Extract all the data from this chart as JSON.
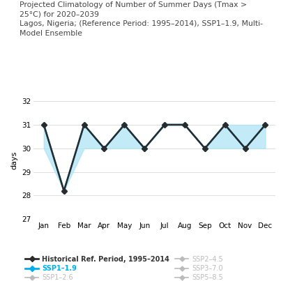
{
  "title_line1": "Projected Climatology of Number of Summer Days (Tmax >",
  "title_line2": "25°C) for 2020–2039",
  "title_line3": "Lagos, Nigeria; (Reference Period: 1995–2014), SSP1–1.9, Multi-",
  "title_line4": "Model Ensemble",
  "months": [
    "Jan",
    "Feb",
    "Mar",
    "Apr",
    "May",
    "Jun",
    "Jul",
    "Aug",
    "Sep",
    "Oct",
    "Nov",
    "Dec"
  ],
  "historical": [
    31,
    28.2,
    31,
    30,
    31,
    30,
    31,
    31,
    30,
    31,
    30,
    31
  ],
  "ssp1_19": [
    31,
    28.2,
    31,
    30,
    31,
    30,
    31,
    31,
    30,
    31,
    30,
    31
  ],
  "fill_lower": [
    30,
    28.2,
    30,
    30,
    30,
    30,
    31,
    31,
    30,
    30,
    30,
    30
  ],
  "fill_upper": [
    31,
    28.2,
    31,
    30,
    31,
    30,
    31,
    31,
    30,
    31,
    31,
    31
  ],
  "ylim": [
    27,
    32
  ],
  "yticks": [
    27,
    28,
    29,
    30,
    31,
    32
  ],
  "ylabel": "days",
  "hist_color": "#2b2b2b",
  "ssp1_19_color": "#00aeef",
  "fill_color": "#aee3f5",
  "fill_alpha": 0.75,
  "ghost_color": "#bbbbbb",
  "legend_items": [
    {
      "label": "Historical Ref. Period, 1995–2014",
      "color": "#2b2b2b",
      "lw": 2,
      "marker": "D",
      "bold": true
    },
    {
      "label": "SSP1–1.9",
      "color": "#00aeef",
      "lw": 2,
      "marker": "D",
      "bold": true
    },
    {
      "label": "SSP1–2.6",
      "color": "#bbbbbb",
      "lw": 1.2,
      "marker": "D",
      "bold": false
    },
    {
      "label": "SSP2–4.5",
      "color": "#bbbbbb",
      "lw": 1.2,
      "marker": "D",
      "bold": false
    },
    {
      "label": "SSP3–7.0",
      "color": "#bbbbbb",
      "lw": 1.2,
      "marker": "D",
      "bold": false
    },
    {
      "label": "SSP5–8.5",
      "color": "#bbbbbb",
      "lw": 1.2,
      "marker": "D",
      "bold": false
    }
  ]
}
